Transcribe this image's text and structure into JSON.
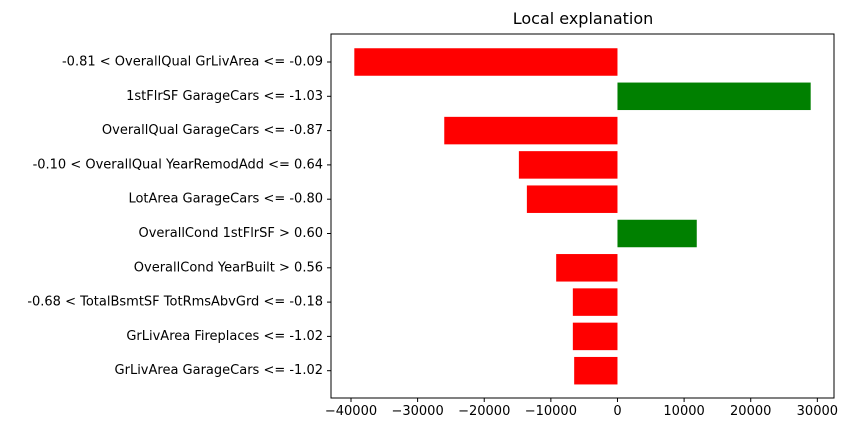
{
  "chart_data": {
    "type": "bar",
    "orientation": "horizontal",
    "title": "Local explanation",
    "xlabel": "",
    "ylabel": "",
    "xlim": [
      -43000,
      32500
    ],
    "grid": false,
    "legend": "none",
    "categories": [
      "-0.81 < OverallQual GrLivArea <= -0.09",
      "1stFlrSF GarageCars <= -1.03",
      "OverallQual GarageCars <= -0.87",
      "-0.10 < OverallQual YearRemodAdd <= 0.64",
      "LotArea GarageCars <= -0.80",
      "OverallCond 1stFlrSF > 0.60",
      "OverallCond YearBuilt > 0.56",
      "-0.68 < TotalBsmtSF TotRmsAbvGrd <= -0.18",
      "GrLivArea Fireplaces <= -1.02",
      "GrLivArea GarageCars <= -1.02"
    ],
    "values": [
      -39500,
      29000,
      -26000,
      -14800,
      -13600,
      11900,
      -9200,
      -6700,
      -6700,
      -6500
    ],
    "x_ticks": [
      -40000,
      -30000,
      -20000,
      -10000,
      0,
      10000,
      20000,
      30000
    ],
    "x_tick_labels": [
      "−40000",
      "−30000",
      "−20000",
      "−10000",
      "0",
      "10000",
      "20000",
      "30000"
    ],
    "colors": {
      "positive": "#008000",
      "negative": "#ff0000"
    }
  }
}
